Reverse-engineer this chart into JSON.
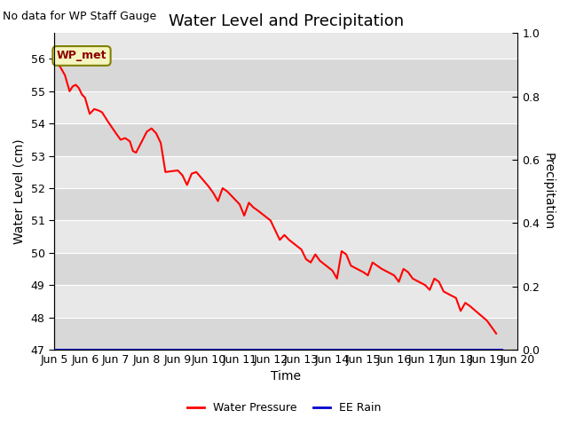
{
  "title": "Water Level and Precipitation",
  "subtitle": "No data for WP Staff Gauge",
  "xlabel": "Time",
  "ylabel_left": "Water Level (cm)",
  "ylabel_right": "Precipitation",
  "legend_label1": "Water Pressure",
  "legend_label2": "EE Rain",
  "wp_met_label": "WP_met",
  "ylim_left": [
    47.0,
    56.8
  ],
  "ylim_right": [
    0.0,
    1.0
  ],
  "yticks_left": [
    47.0,
    48.0,
    49.0,
    50.0,
    51.0,
    52.0,
    53.0,
    54.0,
    55.0,
    56.0
  ],
  "yticks_right": [
    0.0,
    0.2,
    0.4,
    0.6,
    0.8,
    1.0
  ],
  "xtick_labels": [
    "Jun 5",
    "Jun 6",
    "Jun 7",
    "Jun 8",
    "Jun 9",
    "Jun 10",
    "Jun 11",
    "Jun 12",
    "Jun 13",
    "Jun 14",
    "Jun 15",
    "Jun 16",
    "Jun 17",
    "Jun 18",
    "Jun 19",
    "Jun 20"
  ],
  "background_color": "#e8e8e8",
  "line_color_wp": "#ff0000",
  "line_color_rain": "#0000cc",
  "water_pressure_data_x": [
    5.0,
    5.1,
    5.2,
    5.35,
    5.5,
    5.6,
    5.7,
    5.8,
    5.9,
    6.0,
    6.15,
    6.3,
    6.45,
    6.55,
    6.65,
    6.75,
    7.0,
    7.15,
    7.3,
    7.45,
    7.55,
    7.65,
    8.0,
    8.15,
    8.3,
    8.45,
    8.6,
    9.0,
    9.15,
    9.3,
    9.45,
    9.6,
    10.0,
    10.15,
    10.3,
    10.45,
    10.6,
    11.0,
    11.15,
    11.3,
    11.45,
    11.6,
    12.0,
    12.15,
    12.3,
    12.45,
    12.6,
    13.0,
    13.15,
    13.3,
    13.45,
    13.6,
    14.0,
    14.15,
    14.3,
    14.45,
    14.6,
    15.0,
    15.15,
    15.3,
    15.45,
    15.6,
    16.0,
    16.15,
    16.3,
    16.45,
    16.6,
    17.0,
    17.15,
    17.3,
    17.45,
    17.6,
    18.0,
    18.15,
    18.3,
    18.45,
    19.0,
    19.3
  ],
  "water_pressure_data_y": [
    55.9,
    55.85,
    55.75,
    55.5,
    55.0,
    55.15,
    55.2,
    55.1,
    54.9,
    54.8,
    54.3,
    54.45,
    54.4,
    54.35,
    54.2,
    54.05,
    53.7,
    53.5,
    53.55,
    53.45,
    53.15,
    53.1,
    53.75,
    53.85,
    53.7,
    53.4,
    52.5,
    52.55,
    52.4,
    52.1,
    52.45,
    52.5,
    52.05,
    51.85,
    51.6,
    52.0,
    51.9,
    51.5,
    51.15,
    51.55,
    51.4,
    51.3,
    51.0,
    50.7,
    50.4,
    50.55,
    50.4,
    50.1,
    49.8,
    49.7,
    49.95,
    49.75,
    49.45,
    49.2,
    50.05,
    49.95,
    49.6,
    49.4,
    49.3,
    49.7,
    49.6,
    49.5,
    49.3,
    49.1,
    49.5,
    49.4,
    49.2,
    49.0,
    48.85,
    49.2,
    49.1,
    48.8,
    48.6,
    48.2,
    48.45,
    48.35,
    47.9,
    47.5
  ],
  "title_fontsize": 13,
  "axis_label_fontsize": 10,
  "tick_fontsize": 9,
  "subtitle_fontsize": 9
}
